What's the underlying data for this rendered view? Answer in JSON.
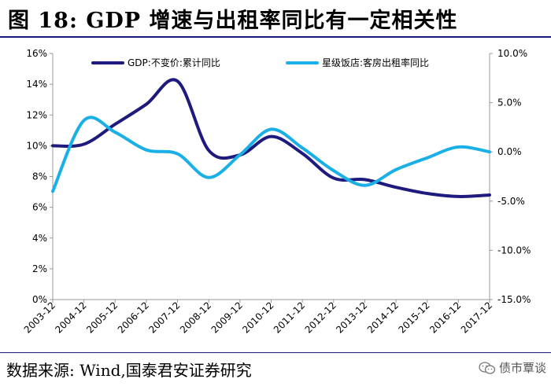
{
  "header": {
    "title": "图 18:  GDP 增速与出租率同比有一定相关性"
  },
  "footer": {
    "source": "数据来源:  Wind,国泰君安证券研究",
    "watermark": "债市覃谈"
  },
  "colors": {
    "gdp": "#1e1a7e",
    "hotel": "#1ab0e6",
    "rule": "#1a1a7a"
  },
  "chart_data": {
    "type": "line",
    "title": "",
    "x": [
      "2003-12",
      "2004-12",
      "2005-12",
      "2006-12",
      "2007-12",
      "2008-12",
      "2009-12",
      "2010-12",
      "2011-12",
      "2012-12",
      "2013-12",
      "2014-12",
      "2015-12",
      "2016-12",
      "2017-12"
    ],
    "y_left": {
      "min": 0,
      "max": 16,
      "step": 2,
      "ticks": [
        "0%",
        "2%",
        "4%",
        "6%",
        "8%",
        "10%",
        "12%",
        "14%",
        "16%"
      ]
    },
    "y_right": {
      "min": -15,
      "max": 10,
      "step": 5,
      "ticks": [
        "-15.0%",
        "-10.0%",
        "-5.0%",
        "0.0%",
        "5.0%",
        "10.0%"
      ]
    },
    "series": [
      {
        "name": "GDP:不变价:累计同比",
        "axis": "left",
        "values": [
          10.0,
          10.1,
          11.4,
          12.7,
          14.2,
          9.7,
          9.4,
          10.6,
          9.5,
          7.9,
          7.8,
          7.3,
          6.9,
          6.7,
          6.8
        ]
      },
      {
        "name": "星级饭店:客房出租率同比",
        "axis": "right",
        "values": [
          -4.0,
          3.2,
          2.0,
          0.2,
          -0.2,
          -2.6,
          -0.3,
          2.3,
          0.4,
          -1.9,
          -3.4,
          -1.8,
          -0.6,
          0.5,
          0.0
        ]
      }
    ]
  }
}
